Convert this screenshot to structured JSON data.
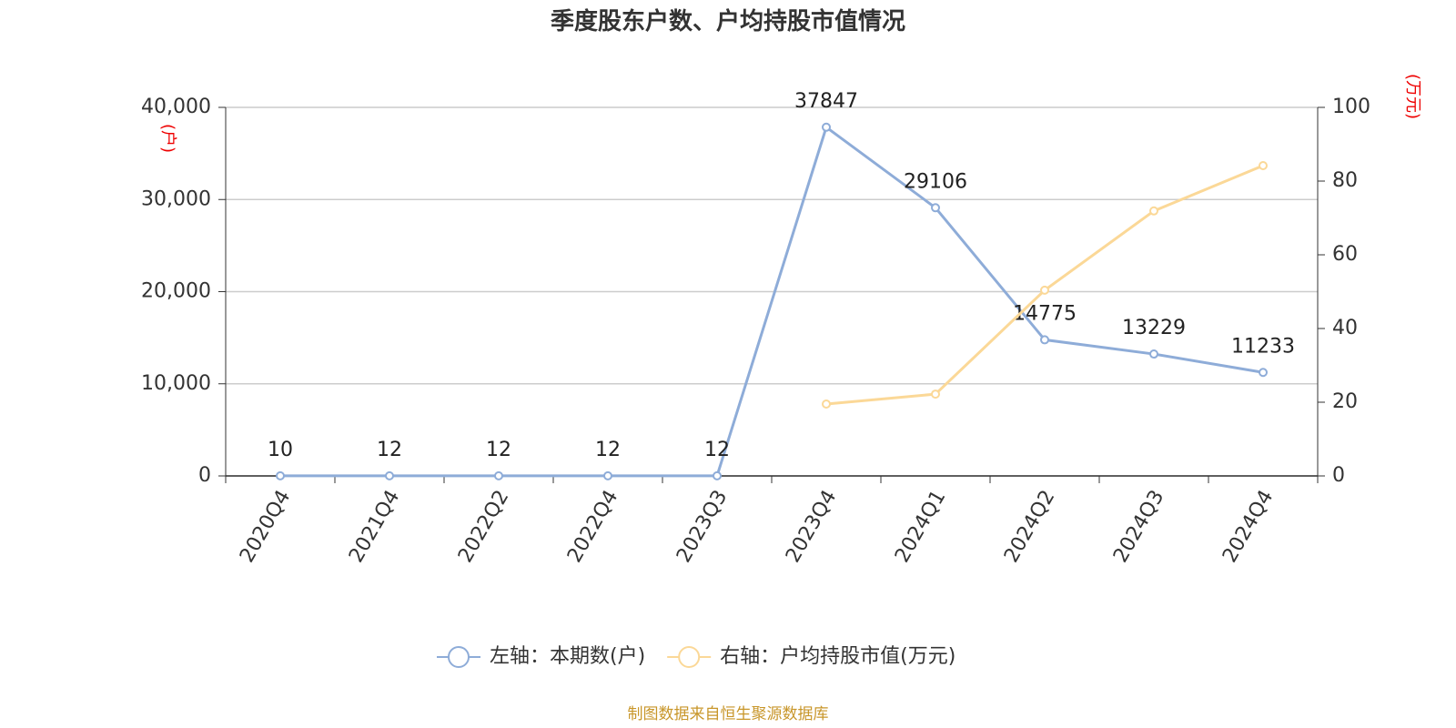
{
  "chart_data": {
    "type": "line",
    "title": "季度股东户数、户均持股市值情况",
    "y_unit": "(户)",
    "y2_unit": "(万元)",
    "source": "制图数据来自恒生聚源数据库",
    "categories": [
      "2020Q4",
      "2021Q4",
      "2022Q2",
      "2022Q4",
      "2023Q3",
      "2023Q4",
      "2024Q1",
      "2024Q2",
      "2024Q3",
      "2024Q4"
    ],
    "series": [
      {
        "name": "左轴：本期数(户)",
        "color": "#8eacd8",
        "values": [
          10,
          12,
          12,
          12,
          12,
          37847,
          29106,
          14775,
          13229,
          11233
        ],
        "data_labels": true
      },
      {
        "name": "右轴：户均持股市值(万元)",
        "color": "#fbd897",
        "axis": "y2",
        "values": [
          null,
          null,
          null,
          null,
          null,
          19.5,
          22.2,
          50.4,
          71.9,
          84.2
        ]
      }
    ],
    "ylim": [
      0,
      40000
    ],
    "yticks": [
      0,
      {
        "value": 10000,
        "label": "10,000"
      },
      {
        "value": 20000,
        "label": "20,000"
      },
      {
        "value": 30000,
        "label": "30,000"
      },
      {
        "value": 40000,
        "label": "40,000"
      }
    ],
    "y2lim": [
      0,
      100
    ],
    "y2ticks": [
      0,
      20,
      40,
      60,
      80,
      100
    ],
    "grid": true
  }
}
